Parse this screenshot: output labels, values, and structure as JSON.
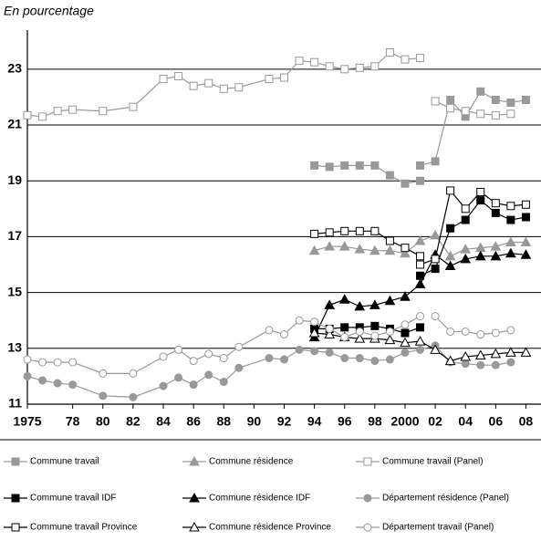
{
  "chart_data": {
    "type": "line",
    "title": "En pourcentage",
    "xlim": [
      1975,
      2009
    ],
    "xticks": [
      1975,
      {
        "value": 1978,
        "label": "78"
      },
      {
        "value": 1980,
        "label": "80"
      },
      {
        "value": 1982,
        "label": "82"
      },
      {
        "value": 1984,
        "label": "84"
      },
      {
        "value": 1986,
        "label": "86"
      },
      {
        "value": 1988,
        "label": "88"
      },
      {
        "value": 1990,
        "label": "90"
      },
      {
        "value": 1992,
        "label": "92"
      },
      {
        "value": 1994,
        "label": "94"
      },
      {
        "value": 1996,
        "label": "96"
      },
      {
        "value": 1998,
        "label": "98"
      },
      2000,
      {
        "value": 2002,
        "label": "02"
      },
      {
        "value": 2004,
        "label": "04"
      },
      {
        "value": 2006,
        "label": "06"
      },
      {
        "value": 2008,
        "label": "08"
      }
    ],
    "ylim": [
      11,
      24.4
    ],
    "yticks": [
      11,
      13,
      15,
      17,
      19,
      21,
      23
    ],
    "grid": true,
    "legend": "bottom",
    "series": [
      {
        "name": "Commune travail",
        "color": "#999999",
        "marker": "square",
        "marker_fill": "#999999",
        "x": [
          1994,
          1995,
          1996,
          1997,
          1998,
          1999,
          2000,
          2001,
          null,
          2001,
          2002,
          2003,
          2004,
          2005,
          2006,
          2007,
          2008
        ],
        "values": [
          19.55,
          19.5,
          19.55,
          19.55,
          19.55,
          19.2,
          18.9,
          19.0,
          null,
          19.55,
          19.7,
          21.9,
          21.3,
          22.2,
          21.9,
          21.8,
          21.9
        ]
      },
      {
        "name": "Commune résidence",
        "color": "#999999",
        "marker": "triangle",
        "marker_fill": "#999999",
        "x": [
          1994,
          1995,
          1996,
          1997,
          1998,
          1999,
          2000,
          2001,
          2002,
          2003,
          2004,
          2005,
          2006,
          2007,
          2008
        ],
        "values": [
          16.5,
          16.65,
          16.65,
          16.55,
          16.5,
          16.5,
          16.4,
          16.85,
          17.05,
          16.3,
          16.55,
          16.6,
          16.65,
          16.8,
          16.8
        ]
      },
      {
        "name": "Commune travail (Panel)",
        "color": "#999999",
        "marker": "square",
        "marker_fill": "#ffffff",
        "x": [
          1975,
          1976,
          1977,
          1978,
          1980,
          1982,
          1984,
          1985,
          1986,
          1987,
          1988,
          1989,
          1991,
          1992,
          1993,
          1994,
          1995,
          1996,
          1997,
          1998,
          1999,
          2000,
          2001,
          null,
          2002,
          2003,
          2004,
          2005,
          2006,
          2007
        ],
        "values": [
          21.35,
          21.3,
          21.5,
          21.55,
          21.5,
          21.65,
          22.65,
          22.75,
          22.4,
          22.5,
          22.3,
          22.35,
          22.65,
          22.7,
          23.3,
          23.25,
          23.1,
          23.0,
          23.05,
          23.1,
          23.6,
          23.35,
          23.4,
          null,
          21.85,
          21.6,
          21.5,
          21.4,
          21.35,
          21.4
        ]
      },
      {
        "name": "Commune travail IDF",
        "color": "#000000",
        "marker": "square",
        "marker_fill": "#000000",
        "x": [
          1994,
          1995,
          1996,
          1997,
          1998,
          1999,
          2000,
          2001,
          null,
          2001,
          2002,
          2003,
          2004,
          2005,
          2006,
          2007,
          2008
        ],
        "values": [
          13.7,
          13.7,
          13.75,
          13.75,
          13.8,
          13.7,
          13.55,
          13.75,
          null,
          15.6,
          15.85,
          17.3,
          17.6,
          18.3,
          17.85,
          17.6,
          17.7
        ]
      },
      {
        "name": "Commune résidence IDF",
        "color": "#000000",
        "marker": "triangle",
        "marker_fill": "#000000",
        "x": [
          1994,
          1995,
          1996,
          1997,
          1998,
          1999,
          2000,
          2001,
          2002,
          2003,
          2004,
          2005,
          2006,
          2007,
          2008
        ],
        "values": [
          13.4,
          14.55,
          14.75,
          14.5,
          14.55,
          14.7,
          14.85,
          15.3,
          16.35,
          15.95,
          16.2,
          16.3,
          16.3,
          16.4,
          16.35
        ]
      },
      {
        "name": "Département résidence (Panel)",
        "color": "#999999",
        "marker": "circle",
        "marker_fill": "#999999",
        "x": [
          1975,
          1976,
          1977,
          1978,
          1980,
          1982,
          1984,
          1985,
          1986,
          1987,
          1988,
          1989,
          1991,
          1992,
          1993,
          1994,
          1995,
          1996,
          1997,
          1998,
          1999,
          2000,
          2001,
          2002,
          2003,
          2004,
          2005,
          2006,
          2007
        ],
        "values": [
          12.0,
          11.85,
          11.75,
          11.7,
          11.3,
          11.25,
          11.65,
          11.95,
          11.7,
          12.05,
          11.8,
          12.3,
          12.65,
          12.6,
          12.95,
          12.9,
          12.85,
          12.65,
          12.65,
          12.55,
          12.6,
          12.85,
          12.95,
          13.1,
          12.5,
          12.45,
          12.4,
          12.4,
          12.5
        ]
      },
      {
        "name": "Commune travail Province",
        "color": "#000000",
        "marker": "square",
        "marker_fill": "#ffffff",
        "x": [
          1994,
          1995,
          1996,
          1997,
          1998,
          1999,
          2000,
          2001,
          null,
          2001,
          2002,
          2003,
          2004,
          2005,
          2006,
          2007,
          2008
        ],
        "values": [
          17.1,
          17.15,
          17.2,
          17.2,
          17.2,
          16.85,
          16.6,
          16.3,
          null,
          16.0,
          16.2,
          18.65,
          18.0,
          18.6,
          18.2,
          18.1,
          18.15
        ]
      },
      {
        "name": "Commune résidence Province",
        "color": "#000000",
        "marker": "triangle",
        "marker_fill": "#ffffff",
        "x": [
          1994,
          1995,
          1996,
          1997,
          1998,
          1999,
          2000,
          2001,
          2002,
          2003,
          2004,
          2005,
          2006,
          2007,
          2008
        ],
        "values": [
          13.55,
          13.5,
          13.4,
          13.35,
          13.35,
          13.3,
          13.2,
          13.25,
          12.95,
          12.55,
          12.7,
          12.75,
          12.8,
          12.85,
          12.85
        ]
      },
      {
        "name": "Département travail (Panel)",
        "color": "#999999",
        "marker": "circle",
        "marker_fill": "#ffffff",
        "x": [
          1975,
          1976,
          1977,
          1978,
          1980,
          1982,
          1984,
          1985,
          1986,
          1987,
          1988,
          1989,
          1991,
          1992,
          1993,
          1994,
          1995,
          1996,
          1997,
          1998,
          1999,
          2000,
          2001,
          null,
          2002,
          2003,
          2004,
          2005,
          2006,
          2007
        ],
        "values": [
          12.6,
          12.5,
          12.5,
          12.5,
          12.1,
          12.1,
          12.7,
          12.95,
          12.55,
          12.8,
          12.65,
          13.05,
          13.65,
          13.5,
          14.0,
          13.95,
          13.7,
          13.4,
          13.6,
          13.45,
          13.6,
          13.85,
          14.15,
          null,
          14.15,
          13.6,
          13.6,
          13.5,
          13.55,
          13.65
        ]
      }
    ]
  }
}
